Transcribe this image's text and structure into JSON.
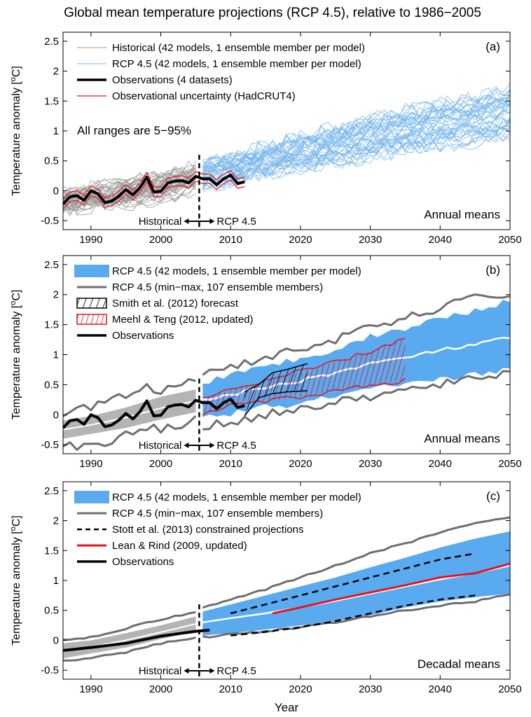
{
  "title": "Global mean temperature projections (RCP 4.5), relative to 1986−2005",
  "ylabel": "Temperature anomaly",
  "yunit_base": "o",
  "yunit_sup_prefix": "[",
  "yunit_sup": "o",
  "yunit_suffix": "C]",
  "xlabel": "Year",
  "divider": {
    "left": "Historical",
    "right": "RCP 4.5",
    "year": 2005.5
  },
  "colors": {
    "rcp_blue": "#5aaaf0",
    "rcp_line": "#7ab8ec",
    "hist_gray": "#9a9a9a",
    "band_gray": "#b4b4b4",
    "minmax_gray": "#6e6e6e",
    "red": "#e8121b",
    "black": "#000000"
  },
  "chart_data": [
    {
      "panel": "a",
      "type": "line",
      "panel_label": "(a)",
      "corner_text": "Annual means",
      "note": "All ranges are 5−95%",
      "xlim": [
        1986,
        2050
      ],
      "ylim": [
        -0.65,
        2.65
      ],
      "xticks": [
        1990,
        2000,
        2010,
        2020,
        2030,
        2040,
        2050
      ],
      "yticks": [
        -0.5,
        0,
        0.5,
        1,
        1.5,
        2,
        2.5
      ],
      "legend": [
        {
          "label": "Historical (42 models, 1 ensemble member per model)",
          "style": "thin-gray"
        },
        {
          "label": "RCP 4.5 (42 models, 1 ensemble member per model)",
          "style": "thin-blue"
        },
        {
          "label": "Observations (4 datasets)",
          "style": "thick-black"
        },
        {
          "label": "Observational uncertainty (HadCRUT4)",
          "style": "thin-red"
        }
      ],
      "observations": {
        "x": [
          1986,
          1987,
          1988,
          1989,
          1990,
          1991,
          1992,
          1993,
          1994,
          1995,
          1996,
          1997,
          1998,
          1999,
          2000,
          2001,
          2002,
          2003,
          2004,
          2005,
          2006,
          2007,
          2008,
          2009,
          2010,
          2011,
          2012
        ],
        "y": [
          -0.22,
          -0.1,
          -0.08,
          -0.16,
          0.0,
          -0.05,
          -0.2,
          -0.17,
          -0.09,
          0.02,
          -0.07,
          0.05,
          0.23,
          -0.02,
          -0.01,
          0.13,
          0.16,
          0.17,
          0.13,
          0.24,
          0.2,
          0.2,
          0.1,
          0.2,
          0.26,
          0.12,
          0.15
        ]
      },
      "hist_models_range": {
        "x": [
          1986,
          1995,
          2005
        ],
        "low": [
          -0.45,
          -0.4,
          -0.15
        ],
        "high": [
          0.1,
          0.3,
          0.55
        ]
      },
      "rcp_models_range": {
        "x": [
          2006,
          2020,
          2035,
          2050
        ],
        "low": [
          -0.05,
          0.2,
          0.45,
          0.65
        ],
        "high": [
          0.6,
          1.1,
          1.6,
          2.0
        ]
      }
    },
    {
      "panel": "b",
      "type": "area",
      "panel_label": "(b)",
      "corner_text": "Annual means",
      "xlim": [
        1986,
        2050
      ],
      "ylim": [
        -0.65,
        2.65
      ],
      "xticks": [
        1990,
        2000,
        2010,
        2020,
        2030,
        2040,
        2050
      ],
      "yticks": [
        -0.5,
        0,
        0.5,
        1,
        1.5,
        2,
        2.5
      ],
      "legend": [
        {
          "label": "RCP 4.5 (42 models, 1 ensemble member per model)",
          "style": "blue-patch"
        },
        {
          "label": "RCP 4.5 (min−max, 107 ensemble members)",
          "style": "dark-gray-line"
        },
        {
          "label": "Smith et al. (2012) forecast",
          "style": "black-hatch"
        },
        {
          "label": "Meehl & Teng (2012, updated)",
          "style": "red-hatch"
        },
        {
          "label": "Observations",
          "style": "thick-black"
        }
      ],
      "series": [
        {
          "name": "Observations",
          "x": [
            1986,
            1987,
            1988,
            1989,
            1990,
            1991,
            1992,
            1993,
            1994,
            1995,
            1996,
            1997,
            1998,
            1999,
            2000,
            2001,
            2002,
            2003,
            2004,
            2005,
            2006,
            2007,
            2008,
            2009,
            2010,
            2011,
            2012
          ],
          "y": [
            -0.22,
            -0.1,
            -0.08,
            -0.16,
            0.0,
            -0.05,
            -0.2,
            -0.17,
            -0.09,
            0.02,
            -0.07,
            0.05,
            0.23,
            -0.02,
            -0.01,
            0.13,
            0.16,
            0.17,
            0.13,
            0.24,
            0.2,
            0.2,
            0.1,
            0.2,
            0.26,
            0.12,
            0.15
          ]
        },
        {
          "name": "Historical 5-95% low",
          "x": [
            1986,
            1990,
            1995,
            2000,
            2005
          ],
          "y": [
            -0.4,
            -0.32,
            -0.22,
            -0.08,
            0.04
          ]
        },
        {
          "name": "Historical 5-95% high",
          "x": [
            1986,
            1990,
            1995,
            2000,
            2005
          ],
          "y": [
            -0.1,
            -0.02,
            0.12,
            0.3,
            0.42
          ]
        },
        {
          "name": "Historical min",
          "x": [
            1986,
            1988,
            1990,
            1992,
            1995,
            1998,
            2000,
            2003,
            2005
          ],
          "y": [
            -0.5,
            -0.55,
            -0.45,
            -0.5,
            -0.3,
            -0.2,
            -0.25,
            -0.15,
            -0.05
          ]
        },
        {
          "name": "Historical max",
          "x": [
            1986,
            1988,
            1990,
            1992,
            1995,
            1998,
            2000,
            2003,
            2005
          ],
          "y": [
            0.02,
            0.15,
            0.1,
            0.25,
            0.3,
            0.45,
            0.4,
            0.5,
            0.58
          ]
        },
        {
          "name": "RCP 4.5 5-95% low",
          "x": [
            2006,
            2010,
            2015,
            2020,
            2025,
            2030,
            2035,
            2040,
            2045,
            2050
          ],
          "y": [
            -0.05,
            0.02,
            0.12,
            0.18,
            0.3,
            0.42,
            0.48,
            0.58,
            0.68,
            0.75
          ]
        },
        {
          "name": "RCP 4.5 5-95% high",
          "x": [
            2006,
            2010,
            2015,
            2020,
            2025,
            2030,
            2035,
            2040,
            2045,
            2050
          ],
          "y": [
            0.55,
            0.65,
            0.8,
            0.95,
            1.1,
            1.3,
            1.45,
            1.6,
            1.75,
            1.9
          ]
        },
        {
          "name": "RCP 4.5 mean",
          "x": [
            2006,
            2010,
            2015,
            2020,
            2025,
            2030,
            2035,
            2040,
            2045,
            2050
          ],
          "y": [
            0.25,
            0.33,
            0.45,
            0.57,
            0.7,
            0.85,
            0.95,
            1.07,
            1.17,
            1.28
          ]
        },
        {
          "name": "RCP 4.5 min",
          "x": [
            2006,
            2010,
            2015,
            2020,
            2025,
            2030,
            2035,
            2040,
            2045,
            2050
          ],
          "y": [
            -0.2,
            -0.12,
            0.0,
            0.1,
            0.2,
            0.3,
            0.4,
            0.5,
            0.6,
            0.72
          ]
        },
        {
          "name": "RCP 4.5 max",
          "x": [
            2006,
            2010,
            2015,
            2020,
            2025,
            2030,
            2035,
            2040,
            2045,
            2050
          ],
          "y": [
            0.7,
            0.8,
            0.95,
            1.1,
            1.25,
            1.45,
            1.6,
            1.78,
            1.95,
            2.0
          ]
        },
        {
          "name": "Smith et al. (2012) low",
          "x": [
            2012,
            2014,
            2016,
            2018,
            2021
          ],
          "y": [
            -0.02,
            0.28,
            0.35,
            0.38,
            0.4
          ]
        },
        {
          "name": "Smith et al. (2012) high",
          "x": [
            2012,
            2014,
            2016,
            2018,
            2021
          ],
          "y": [
            0.38,
            0.5,
            0.7,
            0.75,
            0.85
          ]
        },
        {
          "name": "Meehl & Teng (2012, updated) low",
          "x": [
            2006,
            2010,
            2015,
            2020,
            2025,
            2030,
            2035
          ],
          "y": [
            0.0,
            0.15,
            0.22,
            0.3,
            0.4,
            0.48,
            0.58
          ]
        },
        {
          "name": "Meehl & Teng (2012, updated) high",
          "x": [
            2006,
            2010,
            2015,
            2020,
            2025,
            2030,
            2035
          ],
          "y": [
            0.25,
            0.42,
            0.55,
            0.72,
            0.88,
            1.05,
            1.28
          ]
        }
      ]
    },
    {
      "panel": "c",
      "type": "area",
      "panel_label": "(c)",
      "corner_text": "Decadal means",
      "xlim": [
        1986,
        2050
      ],
      "ylim": [
        -0.65,
        2.65
      ],
      "xticks": [
        1990,
        2000,
        2010,
        2020,
        2030,
        2040,
        2050
      ],
      "yticks": [
        -0.5,
        0,
        0.5,
        1,
        1.5,
        2,
        2.5
      ],
      "legend": [
        {
          "label": "RCP 4.5 (42 models, 1 ensemble member per model)",
          "style": "blue-patch"
        },
        {
          "label": "RCP 4.5 (min−max, 107 ensemble members)",
          "style": "dark-gray-line"
        },
        {
          "label": "Stott et al. (2013) constrained projections",
          "style": "black-dashed"
        },
        {
          "label": "Lean & Rind (2009, updated)",
          "style": "red-line"
        },
        {
          "label": "Observations",
          "style": "thick-black"
        }
      ],
      "series": [
        {
          "name": "Observations",
          "x": [
            1986,
            1990,
            1995,
            2000,
            2005,
            2007
          ],
          "y": [
            -0.17,
            -0.12,
            -0.05,
            0.07,
            0.15,
            0.17
          ]
        },
        {
          "name": "Historical 5-95% low",
          "x": [
            1986,
            1990,
            1995,
            2000,
            2005
          ],
          "y": [
            -0.3,
            -0.22,
            -0.12,
            0.02,
            0.15
          ]
        },
        {
          "name": "Historical 5-95% high",
          "x": [
            1986,
            1990,
            1995,
            2000,
            2005
          ],
          "y": [
            -0.05,
            0.0,
            0.12,
            0.25,
            0.4
          ]
        },
        {
          "name": "Historical min",
          "x": [
            1986,
            1990,
            1995,
            2000,
            2005
          ],
          "y": [
            -0.35,
            -0.3,
            -0.2,
            -0.05,
            0.05
          ]
        },
        {
          "name": "Historical max",
          "x": [
            1986,
            1990,
            1995,
            2000,
            2005
          ],
          "y": [
            0.0,
            0.05,
            0.2,
            0.35,
            0.48
          ]
        },
        {
          "name": "RCP 4.5 5-95% low",
          "x": [
            2006,
            2010,
            2015,
            2020,
            2025,
            2030,
            2035,
            2040,
            2045,
            2050
          ],
          "y": [
            0.08,
            0.12,
            0.18,
            0.25,
            0.32,
            0.42,
            0.55,
            0.65,
            0.72,
            0.78
          ]
        },
        {
          "name": "RCP 4.5 5-95% high",
          "x": [
            2006,
            2010,
            2015,
            2020,
            2025,
            2030,
            2035,
            2040,
            2045,
            2050
          ],
          "y": [
            0.48,
            0.6,
            0.75,
            0.9,
            1.05,
            1.22,
            1.38,
            1.55,
            1.7,
            1.82
          ]
        },
        {
          "name": "RCP 4.5 mean",
          "x": [
            2006,
            2010,
            2015,
            2020,
            2025,
            2030,
            2035,
            2040,
            2045,
            2050
          ],
          "y": [
            0.3,
            0.37,
            0.45,
            0.55,
            0.66,
            0.78,
            0.9,
            1.02,
            1.12,
            1.25
          ]
        },
        {
          "name": "RCP 4.5 min",
          "x": [
            2006,
            2010,
            2015,
            2020,
            2025,
            2030,
            2035,
            2040,
            2045,
            2050
          ],
          "y": [
            0.05,
            0.1,
            0.15,
            0.22,
            0.3,
            0.4,
            0.5,
            0.58,
            0.65,
            0.78
          ]
        },
        {
          "name": "RCP 4.5 max",
          "x": [
            2006,
            2010,
            2015,
            2020,
            2025,
            2030,
            2035,
            2040,
            2045,
            2050
          ],
          "y": [
            0.55,
            0.68,
            0.85,
            1.05,
            1.25,
            1.45,
            1.62,
            1.8,
            1.95,
            2.05
          ]
        },
        {
          "name": "Stott et al. (2013) upper",
          "x": [
            2010,
            2015,
            2020,
            2025,
            2030,
            2035,
            2040,
            2045
          ],
          "y": [
            0.45,
            0.6,
            0.75,
            0.9,
            1.05,
            1.2,
            1.35,
            1.45
          ]
        },
        {
          "name": "Stott et al. (2013) lower",
          "x": [
            2010,
            2015,
            2020,
            2025,
            2030,
            2035,
            2040,
            2045
          ],
          "y": [
            0.08,
            0.14,
            0.22,
            0.32,
            0.45,
            0.58,
            0.68,
            0.75
          ]
        },
        {
          "name": "Lean & Rind (2009, updated)",
          "x": [
            2016,
            2020,
            2025,
            2030,
            2035,
            2040,
            2045,
            2050
          ],
          "y": [
            0.45,
            0.55,
            0.68,
            0.8,
            0.92,
            1.05,
            1.12,
            1.28
          ]
        }
      ]
    }
  ]
}
